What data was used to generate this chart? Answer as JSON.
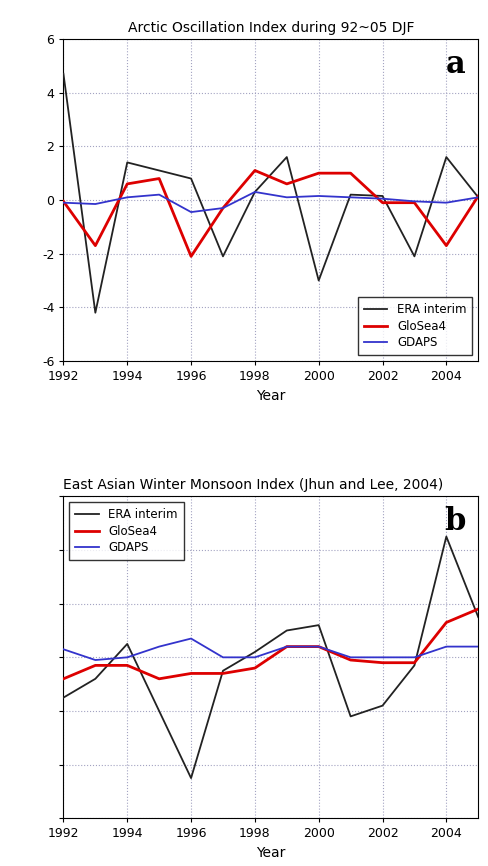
{
  "title_a": "Arctic Oscillation Index during 92~05 DJF",
  "title_b": "East Asian Winter Monsoon Index (Jhun and Lee, 2004)",
  "xlabel": "Year",
  "years": [
    1992,
    1993,
    1994,
    1995,
    1996,
    1997,
    1998,
    1999,
    2000,
    2001,
    2002,
    2003,
    2004,
    2005
  ],
  "ao_era": [
    4.7,
    -4.2,
    1.4,
    1.1,
    0.8,
    -2.1,
    0.3,
    1.6,
    -3.0,
    0.2,
    0.15,
    -2.1,
    1.6,
    0.1
  ],
  "ao_glosea4": [
    -0.05,
    -1.7,
    0.6,
    0.8,
    -2.1,
    -0.3,
    1.1,
    0.6,
    1.0,
    1.0,
    -0.1,
    -0.1,
    -1.7,
    0.15
  ],
  "ao_gdaps": [
    -0.1,
    -0.15,
    0.1,
    0.2,
    -0.45,
    -0.3,
    0.3,
    0.1,
    0.15,
    0.1,
    0.05,
    -0.05,
    -0.1,
    0.1
  ],
  "ao_ylim": [
    -6,
    6
  ],
  "ao_yticks": [
    -6,
    -4,
    -2,
    0,
    2,
    4,
    6
  ],
  "eawm_era": [
    -15,
    -8,
    5,
    -20,
    -45,
    -5,
    2,
    10,
    12,
    -22,
    -18,
    -3,
    45,
    15
  ],
  "eawm_glosea4": [
    -8,
    -3,
    -3,
    -8,
    -6,
    -6,
    -4,
    4,
    4,
    -1,
    -2,
    -2,
    13,
    18
  ],
  "eawm_gdaps": [
    3,
    -1,
    0,
    4,
    7,
    0,
    0,
    4,
    4,
    0,
    0,
    0,
    4,
    4
  ],
  "eawm_ylim": [
    -60,
    60
  ],
  "eawm_yticks_shown": false,
  "color_era": "#222222",
  "color_glosea4": "#dd0000",
  "color_gdaps": "#3333cc",
  "linewidth_era": 1.3,
  "linewidth_glosea4": 2.0,
  "linewidth_gdaps": 1.3,
  "xticks": [
    1992,
    1994,
    1996,
    1998,
    2000,
    2002,
    2004
  ],
  "background_color": "#ffffff",
  "grid_color": "#9999bb",
  "label_era": "ERA interim",
  "label_glosea4": "GloSea4",
  "label_gdaps": "GDAPS"
}
